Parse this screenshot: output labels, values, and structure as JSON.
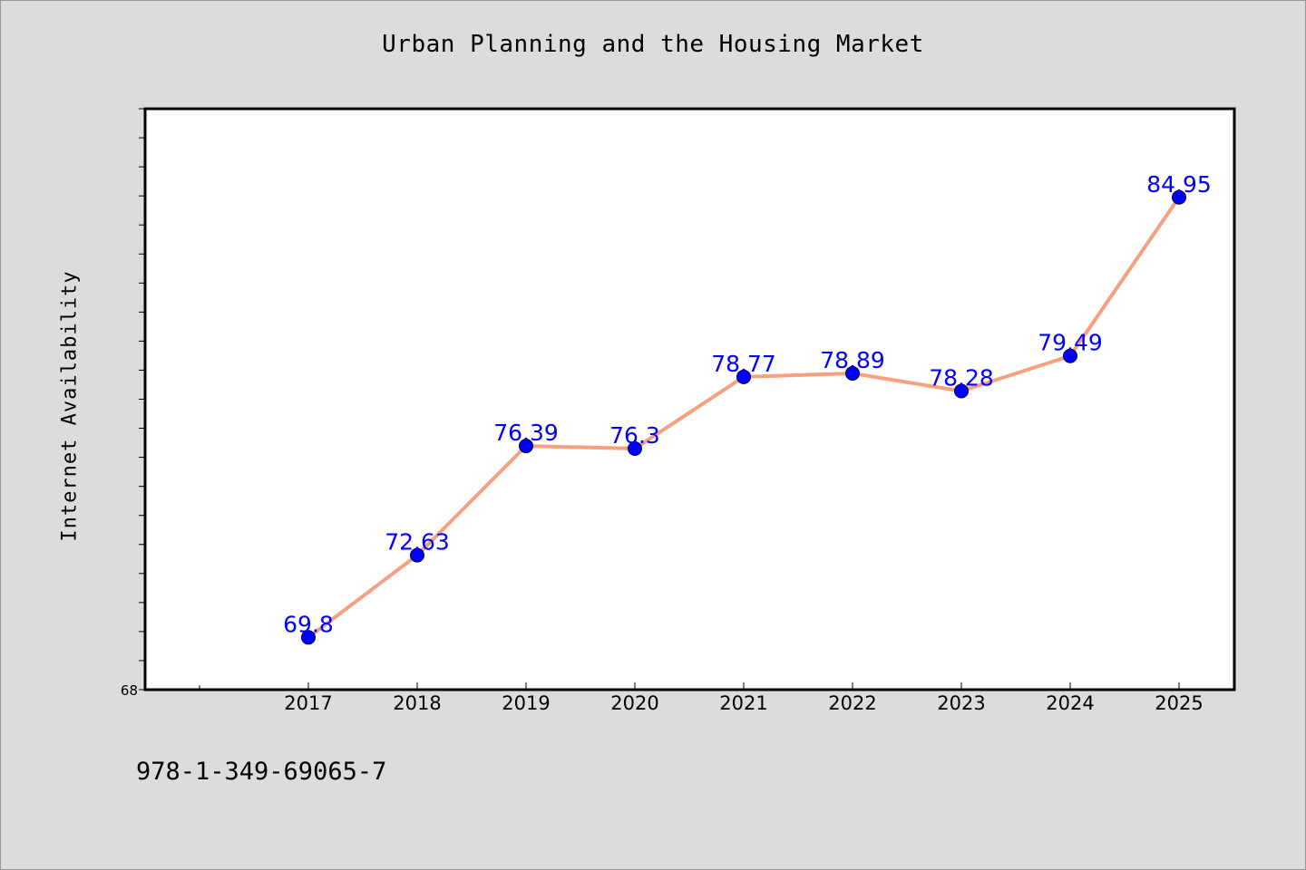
{
  "title": "Urban Planning and the Housing Market",
  "footer_code": "978-1-349-69065-7",
  "chart_data": {
    "type": "line",
    "title": "Urban Planning and the Housing Market",
    "xlabel": "",
    "ylabel": "Internet Availability",
    "categories": [
      "2017",
      "2018",
      "2019",
      "2020",
      "2021",
      "2022",
      "2023",
      "2024",
      "2025"
    ],
    "series": [
      {
        "values": [
          69.8,
          72.63,
          76.39,
          76.3,
          78.77,
          78.89,
          78.28,
          79.49,
          84.95
        ],
        "labels": [
          "69.8",
          "72.63",
          "76.39",
          "76.3",
          "78.77",
          "78.89",
          "78.28",
          "79.49",
          "84.95"
        ],
        "line_color": "#f5a07f",
        "marker_color": "#0000ff"
      }
    ],
    "ylim": [
      68,
      88
    ],
    "yticks_labeled": [
      "68"
    ],
    "grid": false,
    "legend": "none"
  }
}
